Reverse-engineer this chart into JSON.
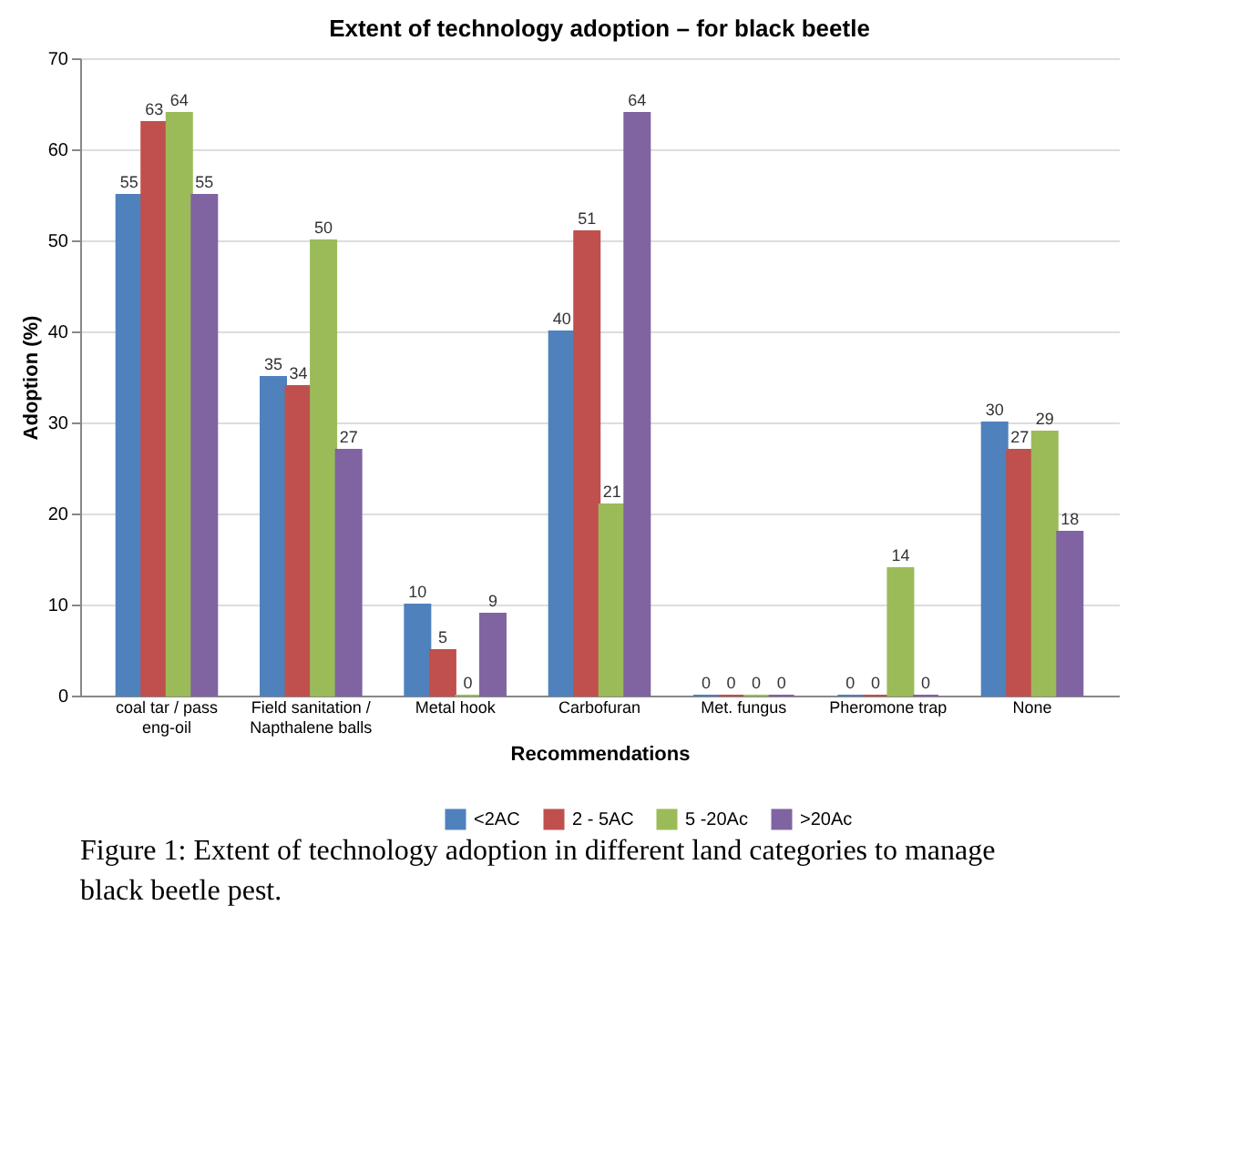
{
  "chart_data": {
    "type": "bar",
    "title": "Extent of technology adoption – for black beetle",
    "xlabel": "Recommendations",
    "ylabel": "Adoption (%)",
    "categories": [
      "coal tar / pass eng-oil",
      "Field sanitation /\nNapthalene balls",
      "Metal hook",
      "Carbofuran",
      "Met. fungus",
      "Pheromone trap",
      "None"
    ],
    "series": [
      {
        "name": "<2AC",
        "color": "#4f81bd",
        "values": [
          55,
          35,
          10,
          40,
          0,
          0,
          30
        ]
      },
      {
        "name": "2 - 5AC",
        "color": "#c0504d",
        "values": [
          63,
          34,
          5,
          51,
          0,
          0,
          27
        ]
      },
      {
        "name": "5 -20Ac",
        "color": "#9bbb59",
        "values": [
          64,
          50,
          0,
          21,
          0,
          14,
          29
        ]
      },
      {
        "name": ">20Ac",
        "color": "#8064a2",
        "values": [
          55,
          27,
          9,
          64,
          0,
          0,
          18
        ]
      }
    ],
    "ylim": [
      0,
      70
    ],
    "yticks": [
      0,
      10,
      20,
      30,
      40,
      50,
      60,
      70
    ],
    "grid": "y",
    "legend": "bottom",
    "data_labels": true,
    "annotations": [
      "Figure 1: Extent of technology adoption in different land categories to manage black beetle pest."
    ]
  }
}
